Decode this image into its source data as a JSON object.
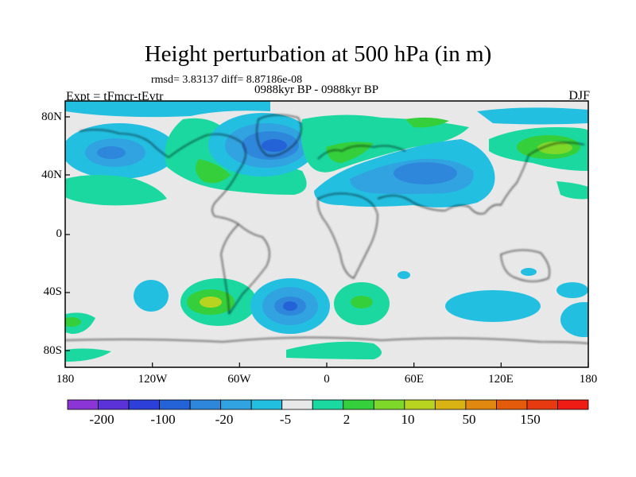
{
  "header": {
    "title": "Height perturbation at 500 hPa (in m)",
    "stats": "rmsd= 3.83137 diff= 8.87186e-08",
    "experiment": "Expt = tFmcr-tEvtr",
    "period": "0988kyr BP - 0988kyr BP",
    "season": "DJF"
  },
  "map": {
    "projection": "cylindrical equidistant",
    "background_color": "#e8e8e8",
    "lat_ticks": [
      "80N",
      "40N",
      "0",
      "40S",
      "80S"
    ],
    "lon_ticks": [
      "180",
      "120W",
      "60W",
      "0",
      "60E",
      "120E",
      "180"
    ]
  },
  "colorbar": {
    "colors": [
      "#8b35d6",
      "#5a32d8",
      "#2c3fd8",
      "#2462d8",
      "#2f87dc",
      "#30a3e0",
      "#23bfe0",
      "#e8e8e8",
      "#1ad8a0",
      "#35cf3c",
      "#7dd82a",
      "#b8d420",
      "#d9b314",
      "#e0880f",
      "#e55b0c",
      "#e83a10",
      "#ee1c14"
    ],
    "labels": [
      "-200",
      "-100",
      "-20",
      "-5",
      "2",
      "10",
      "50",
      "150"
    ]
  }
}
